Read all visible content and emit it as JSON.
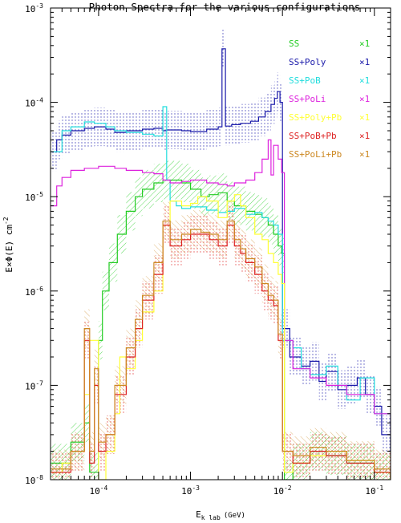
{
  "chart_data": {
    "type": "line",
    "title": "Photon Spectra for the various configurations",
    "xlabel": "E",
    "xlabel_sub": "k lab",
    "xlabel_unit": "(GeV)",
    "ylabel": "E×Φ(E) cm",
    "ylabel_sup": "-2",
    "x_scale": "log",
    "y_scale": "log",
    "xlim": [
      3e-05,
      0.15
    ],
    "ylim": [
      1e-08,
      0.001
    ],
    "x_ticks": [
      {
        "value": 0.0001,
        "base": "10",
        "exp": "-4"
      },
      {
        "value": 0.001,
        "base": "10",
        "exp": "-3"
      },
      {
        "value": 0.01,
        "base": "10",
        "exp": "-2"
      },
      {
        "value": 0.1,
        "base": "10",
        "exp": "-1"
      }
    ],
    "y_ticks": [
      {
        "value": 1e-08,
        "base": "10",
        "exp": "-8"
      },
      {
        "value": 1e-07,
        "base": "10",
        "exp": "-7"
      },
      {
        "value": 1e-06,
        "base": "10",
        "exp": "-6"
      },
      {
        "value": 1e-05,
        "base": "10",
        "exp": "-5"
      },
      {
        "value": 0.0001,
        "base": "10",
        "exp": "-4"
      },
      {
        "value": 0.001,
        "base": "10",
        "exp": "-3"
      }
    ],
    "grid": false,
    "legend_position": "top-right",
    "series": [
      {
        "name": "SS",
        "scale": "×1",
        "color": "#22cc22",
        "x": [
          3e-05,
          5e-05,
          7e-05,
          8e-05,
          0.0001,
          0.00011,
          0.00013,
          0.00016,
          0.0002,
          0.00025,
          0.0003,
          0.0004,
          0.0005,
          0.0006,
          0.0008,
          0.001,
          0.0013,
          0.0016,
          0.002,
          0.0025,
          0.003,
          0.004,
          0.005,
          0.006,
          0.007,
          0.008,
          0.009,
          0.0098,
          0.0105,
          0.013,
          0.02,
          0.03,
          0.05,
          0.1,
          0.15
        ],
        "y": [
          1.5e-08,
          2.5e-08,
          4e-08,
          1.2e-08,
          3e-07,
          1e-06,
          2e-06,
          4e-06,
          7e-06,
          1e-05,
          1.2e-05,
          1.4e-05,
          1.5e-05,
          1.5e-05,
          1.4e-05,
          1.2e-05,
          1e-05,
          1.05e-05,
          1.1e-05,
          9e-06,
          8e-06,
          7e-06,
          6.5e-06,
          6e-06,
          5e-06,
          4e-06,
          3e-06,
          2.5e-06,
          1e-08,
          1.5e-08,
          2e-08,
          1.8e-08,
          1.5e-08,
          1.2e-08,
          1e-08
        ]
      },
      {
        "name": "SS+Poly",
        "scale": "×1",
        "color": "#1a1aaa",
        "x": [
          3e-05,
          3.5e-05,
          4e-05,
          5e-05,
          7e-05,
          9e-05,
          0.00012,
          0.00015,
          0.0002,
          0.0003,
          0.0004,
          0.0005,
          0.00055,
          0.0008,
          0.001,
          0.0015,
          0.002,
          0.0022,
          0.0024,
          0.0028,
          0.0035,
          0.0045,
          0.0055,
          0.0065,
          0.0075,
          0.0082,
          0.0088,
          0.0094,
          0.01,
          0.012,
          0.016,
          0.02,
          0.025,
          0.03,
          0.04,
          0.05,
          0.065,
          0.08,
          0.1,
          0.12,
          0.15
        ],
        "y": [
          3e-05,
          4e-05,
          4.5e-05,
          5e-05,
          5.3e-05,
          5.5e-05,
          5.2e-05,
          4.8e-05,
          5e-05,
          5.2e-05,
          5.3e-05,
          5e-05,
          5.1e-05,
          5e-05,
          4.9e-05,
          5.2e-05,
          5.5e-05,
          0.00037,
          5.6e-05,
          5.8e-05,
          6e-05,
          6.3e-05,
          7e-05,
          8e-05,
          9.5e-05,
          0.00011,
          0.00013,
          0.0001,
          4e-07,
          2e-07,
          1.6e-07,
          1.8e-07,
          1.1e-07,
          1.4e-07,
          9e-08,
          1e-07,
          1.2e-07,
          8e-08,
          6e-08,
          3e-08,
          2e-08
        ]
      },
      {
        "name": "SS+PoB",
        "scale": "×1",
        "color": "#22dddd",
        "x": [
          3e-05,
          4e-05,
          5e-05,
          7e-05,
          9e-05,
          0.00012,
          0.00015,
          0.0002,
          0.0003,
          0.0004,
          0.0005,
          0.00055,
          0.0006,
          0.0007,
          0.0008,
          0.001,
          0.0015,
          0.002,
          0.0025,
          0.003,
          0.004,
          0.005,
          0.006,
          0.007,
          0.008,
          0.009,
          0.01,
          0.013,
          0.016,
          0.02,
          0.03,
          0.04,
          0.05,
          0.07,
          0.1,
          0.15
        ],
        "y": [
          3e-05,
          5e-05,
          5.5e-05,
          6.2e-05,
          6e-05,
          5.5e-05,
          5e-05,
          4.8e-05,
          4.6e-05,
          4.4e-05,
          9e-05,
          1.5e-05,
          9e-06,
          8e-06,
          7.5e-06,
          7.8e-06,
          7.2e-06,
          6.8e-06,
          7e-06,
          7.5e-06,
          6.5e-06,
          6.8e-06,
          6e-06,
          5.5e-06,
          5e-06,
          4e-06,
          3e-07,
          2.5e-07,
          1.5e-07,
          1.3e-07,
          1.6e-07,
          1e-07,
          7e-08,
          1.2e-07,
          5e-08,
          3e-08
        ]
      },
      {
        "name": "SS+PoLi",
        "scale": "×1",
        "color": "#dd22dd",
        "x": [
          3e-05,
          3.5e-05,
          4e-05,
          5e-05,
          7e-05,
          0.0001,
          0.00015,
          0.0002,
          0.0003,
          0.0004,
          0.0005,
          0.0006,
          0.0008,
          0.001,
          0.0015,
          0.002,
          0.0025,
          0.003,
          0.004,
          0.005,
          0.006,
          0.007,
          0.0075,
          0.008,
          0.009,
          0.0098,
          0.0105,
          0.013,
          0.02,
          0.03,
          0.05,
          0.1,
          0.15
        ],
        "y": [
          8e-06,
          1.3e-05,
          1.6e-05,
          1.9e-05,
          2e-05,
          2.1e-05,
          2e-05,
          1.9e-05,
          1.8e-05,
          1.75e-05,
          1.5e-05,
          1.4e-05,
          1.45e-05,
          1.5e-05,
          1.4e-05,
          1.35e-05,
          1.3e-05,
          1.4e-05,
          1.5e-05,
          1.8e-05,
          2.5e-05,
          4e-05,
          1.7e-05,
          3.5e-05,
          2.5e-05,
          1.8e-05,
          3e-07,
          1.5e-07,
          1.2e-07,
          1e-07,
          8e-08,
          5e-08,
          3e-08
        ]
      },
      {
        "name": "SS+Poly+Pb",
        "scale": "×1",
        "color": "#ffff33",
        "x": [
          3e-05,
          4e-05,
          5e-05,
          7e-05,
          8e-05,
          0.0001,
          0.00012,
          0.00015,
          0.00017,
          0.0002,
          0.00025,
          0.0003,
          0.0004,
          0.0005,
          0.0006,
          0.0008,
          0.001,
          0.0012,
          0.0015,
          0.002,
          0.0025,
          0.003,
          0.0035,
          0.004,
          0.005,
          0.006,
          0.007,
          0.008,
          0.009,
          0.0098,
          0.0105,
          0.013,
          0.02,
          0.03,
          0.05,
          0.1,
          0.15
        ],
        "y": [
          1.2e-08,
          1.5e-08,
          2e-08,
          8e-08,
          3e-07,
          1e-08,
          2e-08,
          5e-08,
          2e-07,
          1.5e-07,
          3e-07,
          6e-07,
          1e-06,
          5e-06,
          9e-06,
          8e-06,
          8.5e-06,
          1e-05,
          9e-06,
          6e-06,
          9e-06,
          1.05e-05,
          8e-06,
          6e-06,
          4e-06,
          3.5e-06,
          2.5e-06,
          2e-06,
          1.5e-06,
          1.2e-06,
          1.2e-08,
          1.5e-08,
          1.8e-08,
          2e-08,
          1.6e-08,
          1.2e-08,
          1e-08
        ]
      },
      {
        "name": "SS+PoB+Pb",
        "scale": "×1",
        "color": "#dd2222",
        "x": [
          3e-05,
          5e-05,
          7e-05,
          8e-05,
          9e-05,
          0.0001,
          0.00012,
          0.00015,
          0.0002,
          0.00025,
          0.0003,
          0.0004,
          0.0005,
          0.0006,
          0.0008,
          0.001,
          0.0013,
          0.0016,
          0.002,
          0.0025,
          0.003,
          0.0035,
          0.004,
          0.005,
          0.006,
          0.007,
          0.008,
          0.009,
          0.01,
          0.013,
          0.02,
          0.03,
          0.05,
          0.1,
          0.15
        ],
        "y": [
          1.2e-08,
          2e-08,
          3e-07,
          1.5e-08,
          1e-07,
          2e-08,
          3e-08,
          8e-08,
          2e-07,
          4e-07,
          8e-07,
          1.5e-06,
          5e-06,
          3e-06,
          3.5e-06,
          4e-06,
          4e-06,
          3.5e-06,
          3e-06,
          5e-06,
          3e-06,
          2.5e-06,
          2e-06,
          1.5e-06,
          1e-06,
          8e-07,
          7e-07,
          3e-07,
          2e-08,
          1.5e-08,
          2e-08,
          1.8e-08,
          1.5e-08,
          1.2e-08,
          1e-08
        ]
      },
      {
        "name": "SS+PoLi+Pb",
        "scale": "×1",
        "color": "#cc8822",
        "x": [
          3e-05,
          5e-05,
          7e-05,
          8e-05,
          9e-05,
          0.0001,
          0.00012,
          0.00015,
          0.0002,
          0.00025,
          0.0003,
          0.0004,
          0.0005,
          0.0006,
          0.0008,
          0.001,
          0.0013,
          0.0016,
          0.002,
          0.0025,
          0.003,
          0.0035,
          0.004,
          0.005,
          0.006,
          0.007,
          0.008,
          0.009,
          0.01,
          0.013,
          0.02,
          0.03,
          0.05,
          0.1,
          0.15
        ],
        "y": [
          1.3e-08,
          2e-08,
          4e-07,
          2e-08,
          1.5e-07,
          2.5e-08,
          3e-08,
          1e-07,
          2.5e-07,
          5e-07,
          9e-07,
          2e-06,
          5.5e-06,
          3.5e-06,
          4e-06,
          4.5e-06,
          4.2e-06,
          4e-06,
          3.5e-06,
          5.5e-06,
          3.5e-06,
          2.8e-06,
          2.2e-06,
          1.8e-06,
          1.2e-06,
          9e-07,
          8e-07,
          3.5e-07,
          2e-08,
          1.8e-08,
          2.2e-08,
          2e-08,
          1.6e-08,
          1.3e-08,
          1e-08
        ]
      }
    ]
  }
}
